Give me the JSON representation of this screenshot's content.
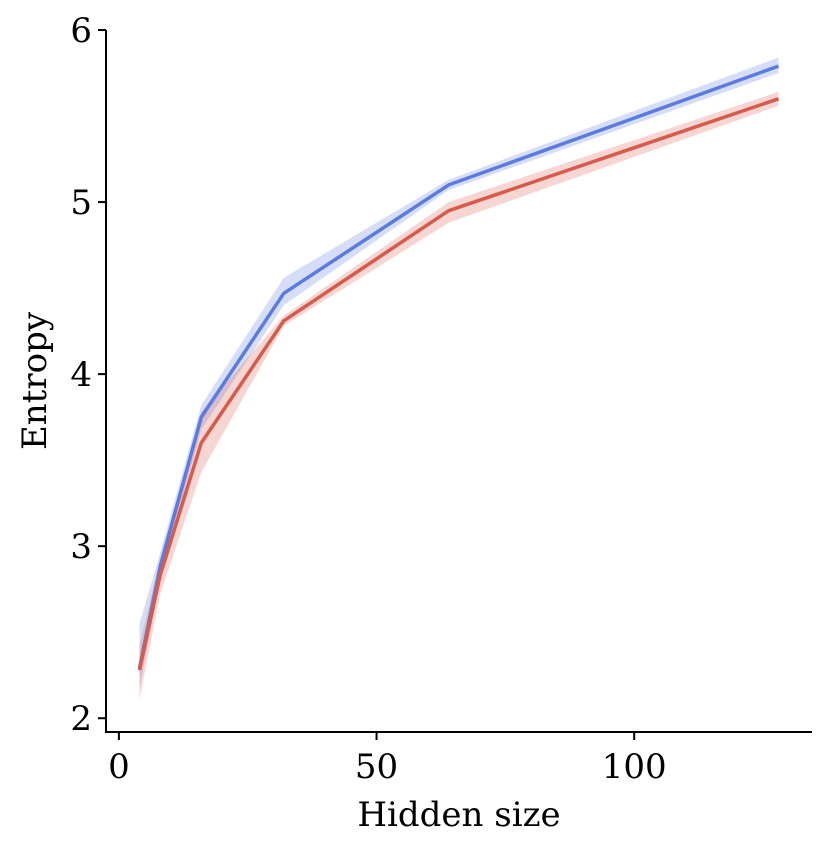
{
  "chart_data": {
    "type": "line",
    "title": "",
    "xlabel": "Hidden size",
    "ylabel": "Entropy",
    "xlim": [
      -2.5,
      134.5
    ],
    "ylim": [
      1.92,
      6.0
    ],
    "xticks": [
      0,
      50,
      100
    ],
    "xtick_labels": [
      "0",
      "50",
      "100"
    ],
    "yticks": [
      2,
      3,
      4,
      5,
      6
    ],
    "ytick_labels": [
      "2",
      "3",
      "4",
      "5",
      "6"
    ],
    "grid": false,
    "legend": "none",
    "series": [
      {
        "color": "#5b7be0",
        "x": [
          4,
          8,
          16,
          32,
          64,
          128
        ],
        "y": [
          2.29,
          2.88,
          3.75,
          4.47,
          5.1,
          5.79
        ],
        "lower": [
          2.18,
          2.8,
          3.68,
          4.4,
          5.07,
          5.75
        ],
        "upper": [
          2.55,
          2.96,
          3.82,
          4.56,
          5.13,
          5.84
        ]
      },
      {
        "color": "#d75a4a",
        "x": [
          4,
          8,
          16,
          32,
          64,
          128
        ],
        "y": [
          2.28,
          2.83,
          3.6,
          4.31,
          4.95,
          5.6
        ],
        "lower": [
          2.11,
          2.72,
          3.43,
          4.28,
          4.88,
          5.56
        ],
        "upper": [
          2.42,
          2.93,
          3.78,
          4.34,
          5.0,
          5.64
        ]
      }
    ]
  }
}
